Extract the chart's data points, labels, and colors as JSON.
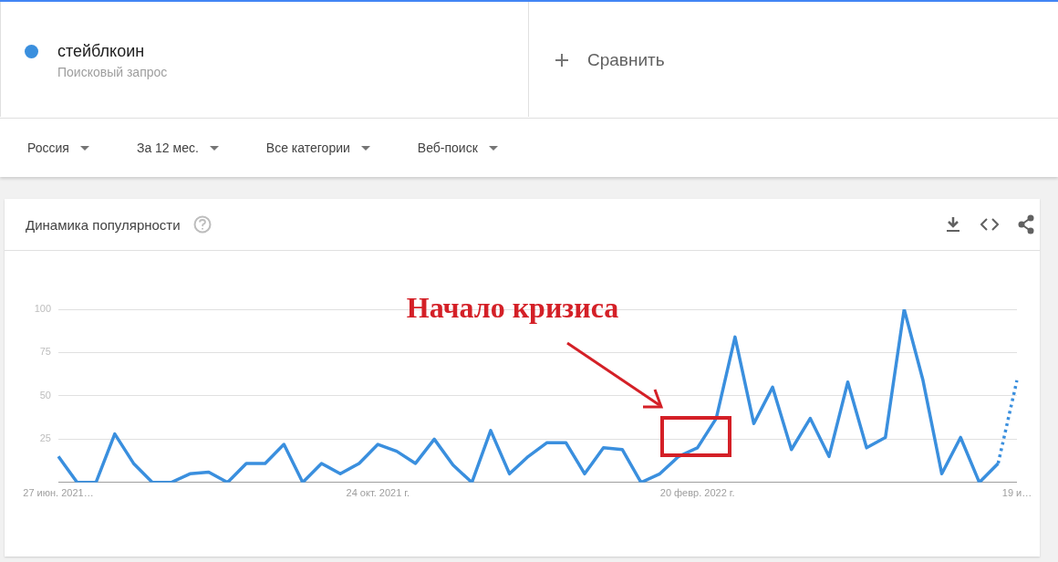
{
  "chart_data": {
    "type": "line",
    "title": "Динамика популярности",
    "subtitle": "Поисковый запрос",
    "categories": [
      "27 июн. 2021…",
      null,
      null,
      null,
      null,
      null,
      null,
      null,
      null,
      null,
      null,
      null,
      null,
      null,
      null,
      null,
      null,
      "24 окт. 2021 г.",
      null,
      null,
      null,
      null,
      null,
      null,
      null,
      null,
      null,
      null,
      null,
      null,
      null,
      null,
      null,
      null,
      "20 февр. 2022 г.",
      null,
      null,
      null,
      null,
      null,
      null,
      null,
      null,
      null,
      null,
      null,
      null,
      null,
      null,
      null,
      null,
      "19 и…"
    ],
    "series": [
      {
        "name": "стейблкоин",
        "color": "#3a8fde",
        "values": [
          15,
          0,
          0,
          28,
          11,
          0,
          0,
          5,
          6,
          0,
          11,
          11,
          22,
          0,
          11,
          5,
          11,
          22,
          18,
          11,
          25,
          10,
          0,
          30,
          5,
          15,
          23,
          23,
          5,
          20,
          19,
          0,
          5,
          15,
          20,
          37,
          84,
          34,
          55,
          19,
          37,
          15,
          58,
          20,
          26,
          100,
          59,
          5,
          26,
          0,
          11,
          null
        ]
      },
      {
        "color": "#3a8fde",
        "line_style": "dotted",
        "values": [
          null,
          null,
          null,
          null,
          null,
          null,
          null,
          null,
          null,
          null,
          null,
          null,
          null,
          null,
          null,
          null,
          null,
          null,
          null,
          null,
          null,
          null,
          null,
          null,
          null,
          null,
          null,
          null,
          null,
          null,
          null,
          null,
          null,
          null,
          null,
          null,
          null,
          null,
          null,
          null,
          null,
          null,
          null,
          null,
          null,
          null,
          null,
          null,
          null,
          null,
          11,
          59
        ]
      }
    ],
    "ylim": [
      0,
      100
    ],
    "yticks": [
      {
        "value": 0,
        "label": null
      },
      25,
      50,
      75,
      100
    ],
    "grid": "y",
    "legend": "top left",
    "marker": "none",
    "line_style": "solid",
    "annotations": [
      "Сравнить",
      "Россия",
      "За 12 мес.",
      "Все категории",
      "Веб-поиск",
      "Начало кризиса"
    ]
  }
}
